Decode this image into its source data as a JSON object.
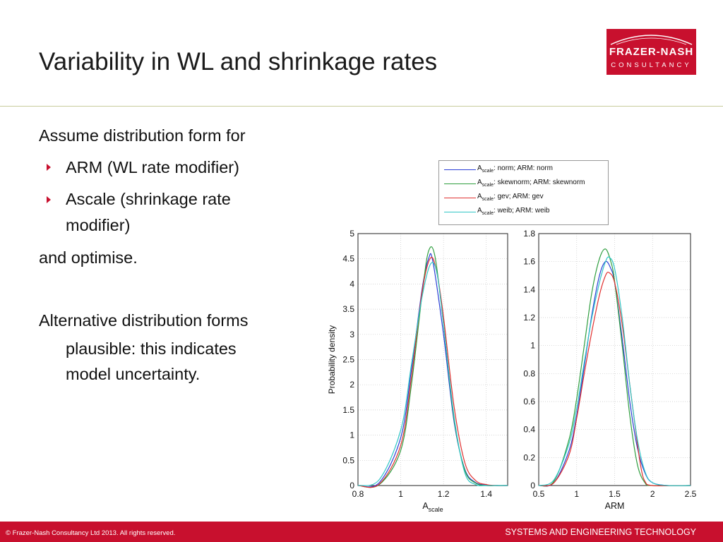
{
  "slide": {
    "title": "Variability in WL and shrinkage rates",
    "logo": {
      "line1": "FRAZER-NASH",
      "line2": "CONSULTANCY"
    },
    "body": {
      "intro": "Assume distribution form for",
      "bullet1": "ARM (WL rate modifier)",
      "bullet2_line1": "Ascale (shrinkage rate",
      "bullet2_line2": "modifier)",
      "outro": "and optimise.",
      "alt_line1": "Alternative distribution forms",
      "alt_line2": "plausible:  this indicates",
      "alt_line3": "model uncertainty."
    },
    "footer": {
      "copyright": "© Frazer-Nash Consultancy Ltd 2013.  All rights reserved.",
      "tagline": "SYSTEMS AND ENGINEERING TECHNOLOGY"
    }
  },
  "legend": [
    {
      "prefix": "A",
      "sub": "scale",
      "rest": ": norm;  ARM: norm",
      "color": "#2b3fd6"
    },
    {
      "prefix": "A",
      "sub": "scale",
      "rest": ": skewnorm;  ARM: skewnorm",
      "color": "#2f9e3f"
    },
    {
      "prefix": "A",
      "sub": "scale",
      "rest": ": gev;  ARM: gev",
      "color": "#e0302f"
    },
    {
      "prefix": "A",
      "sub": "scale",
      "rest": ": weib;  ARM: weib",
      "color": "#2fc6c6"
    }
  ],
  "chart_data": [
    {
      "type": "line",
      "xlabel": "A",
      "xlabel_sub": "scale",
      "ylabel": "Probability density",
      "xlim": [
        0.8,
        1.5
      ],
      "ylim": [
        0,
        5
      ],
      "xticks": [
        "0.8",
        "1",
        "1.2",
        "1.4"
      ],
      "yticks": [
        "0",
        "0.5",
        "1",
        "1.5",
        "2",
        "2.5",
        "3",
        "3.5",
        "4",
        "4.5",
        "5"
      ],
      "grid": true,
      "series": [
        {
          "name": "norm",
          "color": "#2b3fd6",
          "x": [
            0.8,
            0.9,
            1.0,
            1.05,
            1.1,
            1.13,
            1.15,
            1.2,
            1.25,
            1.3,
            1.35,
            1.4,
            1.45,
            1.5
          ],
          "y": [
            0,
            0.06,
            0.95,
            2.3,
            3.9,
            4.5,
            4.45,
            3.0,
            1.25,
            0.32,
            0.06,
            0.01,
            0,
            0
          ]
        },
        {
          "name": "skewnorm",
          "color": "#2f9e3f",
          "x": [
            0.8,
            0.9,
            1.0,
            1.05,
            1.1,
            1.13,
            1.16,
            1.2,
            1.25,
            1.3,
            1.35,
            1.4,
            1.45,
            1.5
          ],
          "y": [
            0,
            0.02,
            0.7,
            2.0,
            3.8,
            4.65,
            4.55,
            3.2,
            1.3,
            0.3,
            0.05,
            0,
            0,
            0
          ]
        },
        {
          "name": "gev",
          "color": "#e0302f",
          "x": [
            0.8,
            0.9,
            1.0,
            1.05,
            1.1,
            1.14,
            1.17,
            1.2,
            1.25,
            1.3,
            1.35,
            1.4,
            1.45,
            1.5
          ],
          "y": [
            0,
            0.03,
            0.8,
            2.15,
            3.85,
            4.52,
            4.2,
            3.35,
            1.55,
            0.45,
            0.1,
            0.02,
            0,
            0
          ]
        },
        {
          "name": "weib",
          "color": "#2fc6c6",
          "x": [
            0.8,
            0.9,
            1.0,
            1.05,
            1.1,
            1.14,
            1.17,
            1.2,
            1.25,
            1.3,
            1.35,
            1.4,
            1.45,
            1.5
          ],
          "y": [
            0,
            0.12,
            1.1,
            2.4,
            3.75,
            4.4,
            4.2,
            3.2,
            1.35,
            0.25,
            0.02,
            0,
            0,
            0
          ]
        }
      ]
    },
    {
      "type": "line",
      "xlabel": "ARM",
      "ylabel": "",
      "xlim": [
        0.5,
        2.5
      ],
      "ylim": [
        0,
        1.8
      ],
      "xticks": [
        "0.5",
        "1",
        "1.5",
        "2",
        "2.5"
      ],
      "yticks": [
        "0",
        "0.2",
        "0.4",
        "0.6",
        "0.8",
        "1",
        "1.2",
        "1.4",
        "1.6",
        "1.8"
      ],
      "grid": true,
      "series": [
        {
          "name": "norm",
          "color": "#2b3fd6",
          "x": [
            0.5,
            0.7,
            0.9,
            1.0,
            1.1,
            1.2,
            1.3,
            1.38,
            1.45,
            1.5,
            1.6,
            1.7,
            1.8,
            1.9,
            2.0,
            2.2,
            2.5
          ],
          "y": [
            0,
            0.02,
            0.25,
            0.5,
            0.85,
            1.22,
            1.5,
            1.6,
            1.55,
            1.45,
            1.05,
            0.6,
            0.27,
            0.09,
            0.02,
            0,
            0
          ]
        },
        {
          "name": "skewnorm",
          "color": "#2f9e3f",
          "x": [
            0.5,
            0.7,
            0.9,
            1.0,
            1.1,
            1.2,
            1.3,
            1.38,
            1.45,
            1.5,
            1.6,
            1.7,
            1.8,
            1.9,
            2.0,
            2.5
          ],
          "y": [
            0,
            0.03,
            0.33,
            0.62,
            1.0,
            1.38,
            1.62,
            1.69,
            1.6,
            1.46,
            1.0,
            0.5,
            0.15,
            0.02,
            0,
            0
          ]
        },
        {
          "name": "gev",
          "color": "#e0302f",
          "x": [
            0.5,
            0.7,
            0.9,
            1.0,
            1.1,
            1.2,
            1.3,
            1.38,
            1.43,
            1.5,
            1.6,
            1.7,
            1.8,
            1.85,
            1.9,
            2.0,
            2.5
          ],
          "y": [
            0,
            0.02,
            0.22,
            0.48,
            0.8,
            1.1,
            1.36,
            1.5,
            1.52,
            1.45,
            1.15,
            0.72,
            0.3,
            0.12,
            0.03,
            0,
            0
          ]
        },
        {
          "name": "weib",
          "color": "#2fc6c6",
          "x": [
            0.5,
            0.7,
            0.9,
            1.0,
            1.1,
            1.2,
            1.3,
            1.38,
            1.43,
            1.5,
            1.6,
            1.7,
            1.8,
            1.9,
            2.0,
            2.2,
            2.5
          ],
          "y": [
            0,
            0.04,
            0.3,
            0.55,
            0.88,
            1.2,
            1.45,
            1.6,
            1.63,
            1.55,
            1.2,
            0.72,
            0.33,
            0.1,
            0.02,
            0,
            0
          ]
        }
      ]
    }
  ]
}
